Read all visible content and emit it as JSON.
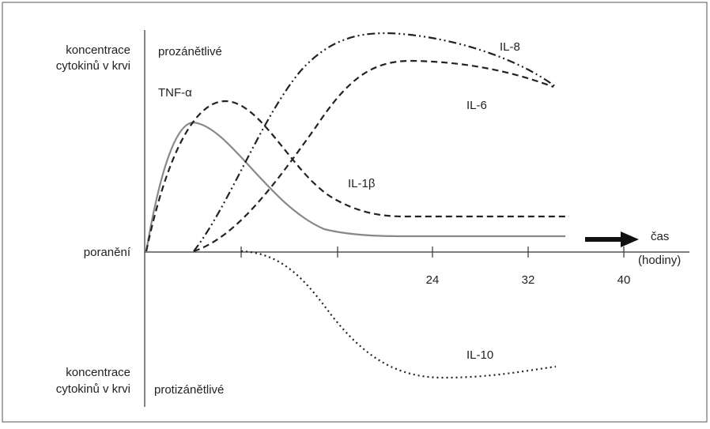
{
  "y_axis": {
    "top_label": [
      "koncentrace",
      "cytokinů v krvi"
    ],
    "top_region": "prozánětlivé",
    "bottom_label": [
      "koncentrace",
      "cytokinů v krvi"
    ],
    "bottom_region": "protizánětlivé",
    "origin": "poranění"
  },
  "x_axis": {
    "label": "čas",
    "unit": "(hodiny)",
    "tick_labels": [
      "24",
      "32",
      "40"
    ]
  },
  "curves": [
    "TNF-α",
    "IL-1β",
    "IL-8",
    "IL-6",
    "IL-10"
  ]
}
